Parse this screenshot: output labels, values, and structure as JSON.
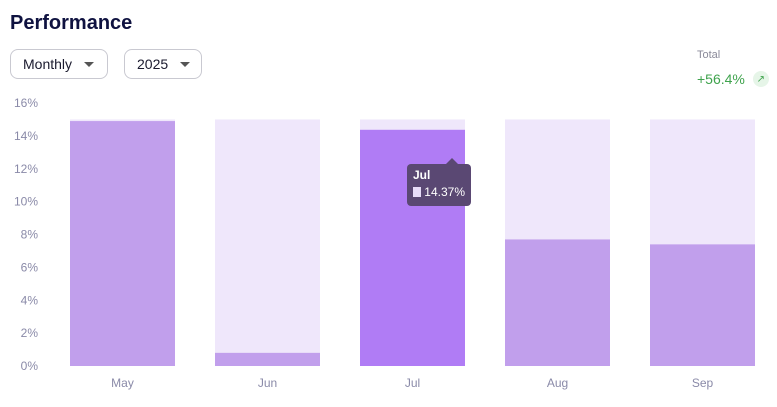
{
  "header": {
    "title": "Performance"
  },
  "filters": {
    "period": "Monthly",
    "year": "2025"
  },
  "summary": {
    "total_label": "Total",
    "total_value": "+56.4%",
    "trend_icon": "arrow-up-right-icon"
  },
  "tooltip": {
    "title": "Jul",
    "value": "14.37%"
  },
  "colors": {
    "bar_bg": "#efe7fb",
    "bar": "#c19fec",
    "bar_active": "#b07cf5",
    "axis_text": "#8a8aa8",
    "positive": "#3fa34d"
  },
  "chart_data": {
    "type": "bar",
    "categories": [
      "May",
      "Jun",
      "Jul",
      "Aug",
      "Sep"
    ],
    "values": [
      14.9,
      0.8,
      14.37,
      7.7,
      7.4
    ],
    "background_value": 15,
    "active_index": 2,
    "ylim": [
      0,
      16
    ],
    "yticks": [
      0,
      2,
      4,
      6,
      8,
      10,
      12,
      14,
      16
    ],
    "ytick_format": "%",
    "grid": false
  }
}
